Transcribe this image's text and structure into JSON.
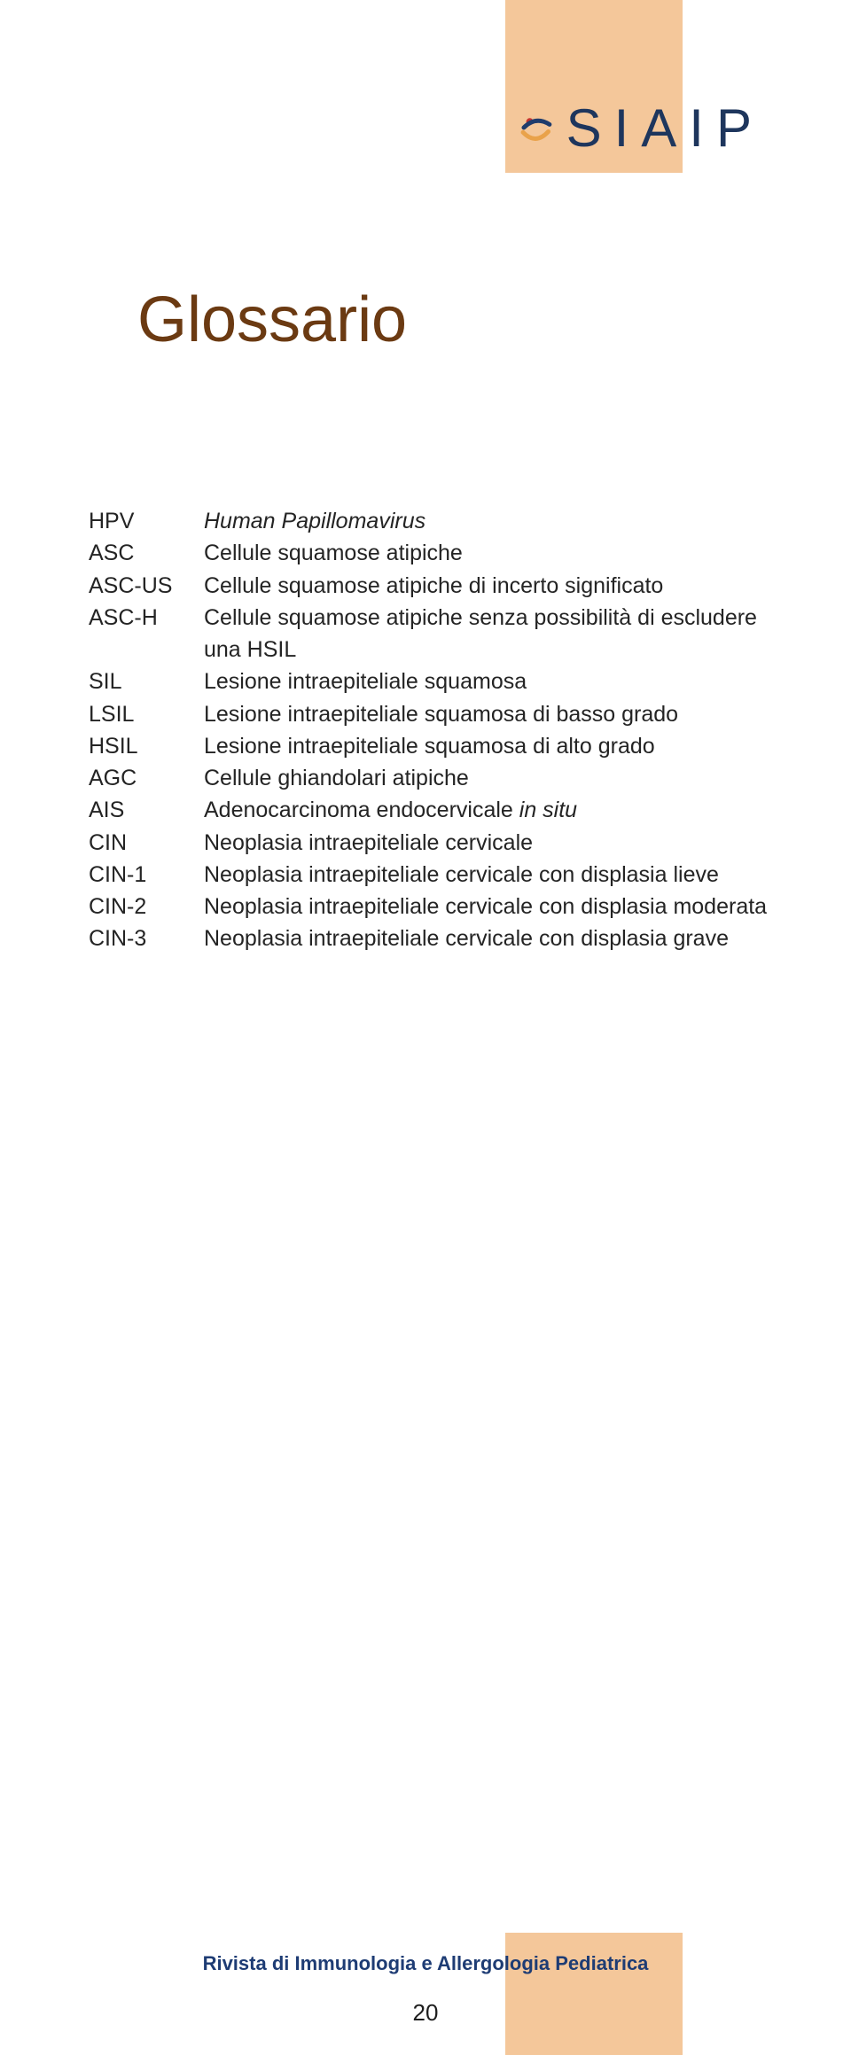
{
  "colors": {
    "band": "#f4c79a",
    "title": "#6b3a12",
    "text": "#242424",
    "logo_text": "#1e365d",
    "journal": "#1e3c74",
    "bg": "#ffffff"
  },
  "logo": {
    "text": "SIAIP",
    "mark": {
      "dot_color": "#c6322e",
      "arc_top": "#1f3c6c",
      "arc_bottom": "#e9a24a"
    }
  },
  "title": "Glossario",
  "glossary": [
    {
      "term": "HPV",
      "def": "Human Papillomavirus",
      "def_italic": true
    },
    {
      "term": "ASC",
      "def": "Cellule squamose atipiche"
    },
    {
      "term": "ASC-US",
      "def": "Cellule squamose atipiche di incerto significato"
    },
    {
      "term": "ASC-H",
      "def": "Cellule squamose atipiche senza possibilità di escludere una HSIL"
    },
    {
      "term": "SIL",
      "def": "Lesione intraepiteliale squamosa"
    },
    {
      "term": "LSIL",
      "def": "Lesione intraepiteliale squamosa di basso grado"
    },
    {
      "term": "HSIL",
      "def": "Lesione intraepiteliale squamosa di alto grado"
    },
    {
      "term": "AGC",
      "def": "Cellule ghiandolari atipiche"
    },
    {
      "term": "AIS",
      "def_prefix": "Adenocarcinoma endocervicale ",
      "def_italic_part": "in situ"
    },
    {
      "term": "CIN",
      "def": "Neoplasia intraepiteliale cervicale"
    },
    {
      "term": "CIN-1",
      "def": "Neoplasia intraepiteliale cervicale con displasia lieve"
    },
    {
      "term": "CIN-2",
      "def": "Neoplasia intraepiteliale cervicale con displasia moderata"
    },
    {
      "term": "CIN-3",
      "def": "Neoplasia intraepiteliale cervicale con displasia grave"
    }
  ],
  "footer": {
    "journal": "Rivista di Immunologia e Allergologia Pediatrica",
    "page": "20"
  }
}
